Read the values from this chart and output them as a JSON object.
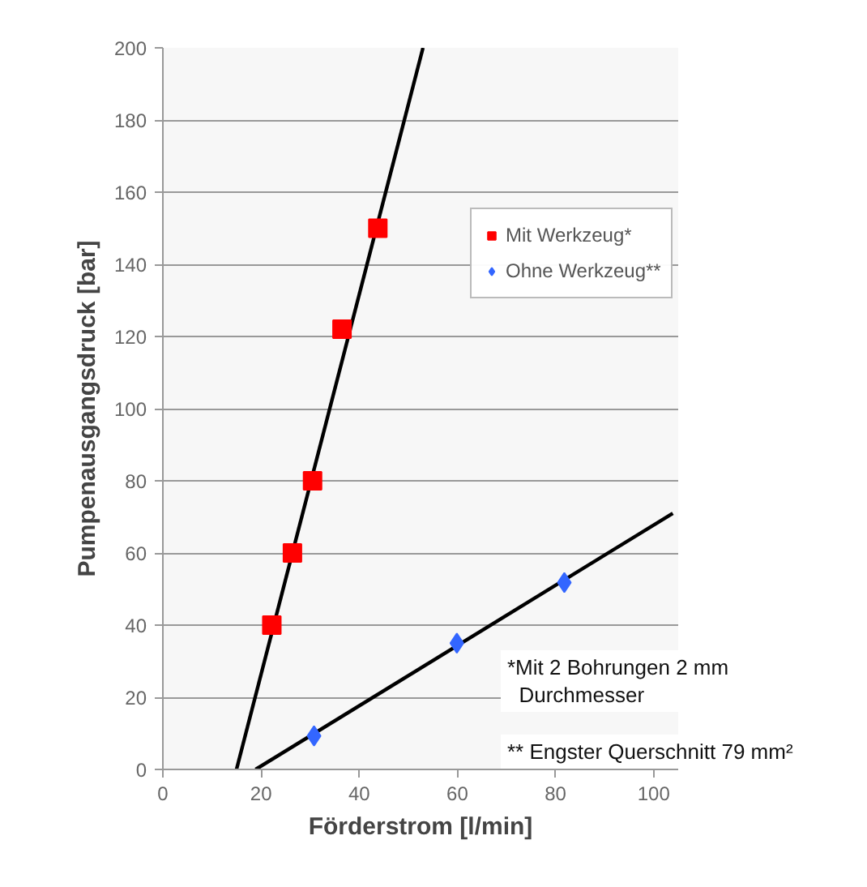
{
  "chart_data": {
    "type": "scatter",
    "xlabel": "Förderstrom [l/min]",
    "ylabel": "Pumpenausgangsdruck [bar]",
    "xlim": [
      0,
      105
    ],
    "xticks": [
      0,
      20,
      40,
      60,
      80,
      100
    ],
    "ylim": [
      0,
      200
    ],
    "yticks": [
      0,
      20,
      40,
      60,
      80,
      100,
      120,
      140,
      160,
      180,
      200
    ],
    "grid": "y",
    "legend": "right",
    "series": [
      {
        "name": "Mit Werkzeug*",
        "color": "#ff0000",
        "marker": "square",
        "x": [
          22.2,
          26.4,
          30.5,
          36.5,
          43.8
        ],
        "values": [
          40,
          60,
          80,
          122,
          150
        ]
      },
      {
        "name": "Ohne Werkzeug**",
        "color": "#3366ff",
        "marker": "diamond",
        "x": [
          30.8,
          59.9,
          81.8
        ],
        "values": [
          9.3,
          35,
          51.8
        ]
      },
      {
        "type": "line",
        "color": "#000000",
        "x": [
          15.0,
          53.0
        ],
        "values": [
          0,
          200
        ]
      },
      {
        "type": "line",
        "color": "#000000",
        "x": [
          18.9,
          103.9
        ],
        "values": [
          0,
          71
        ]
      }
    ],
    "annotations": [
      "*Mit 2 Bohrungen 2 mm\n  Durchmesser",
      "** Engster Querschnitt 79 mm²"
    ]
  }
}
